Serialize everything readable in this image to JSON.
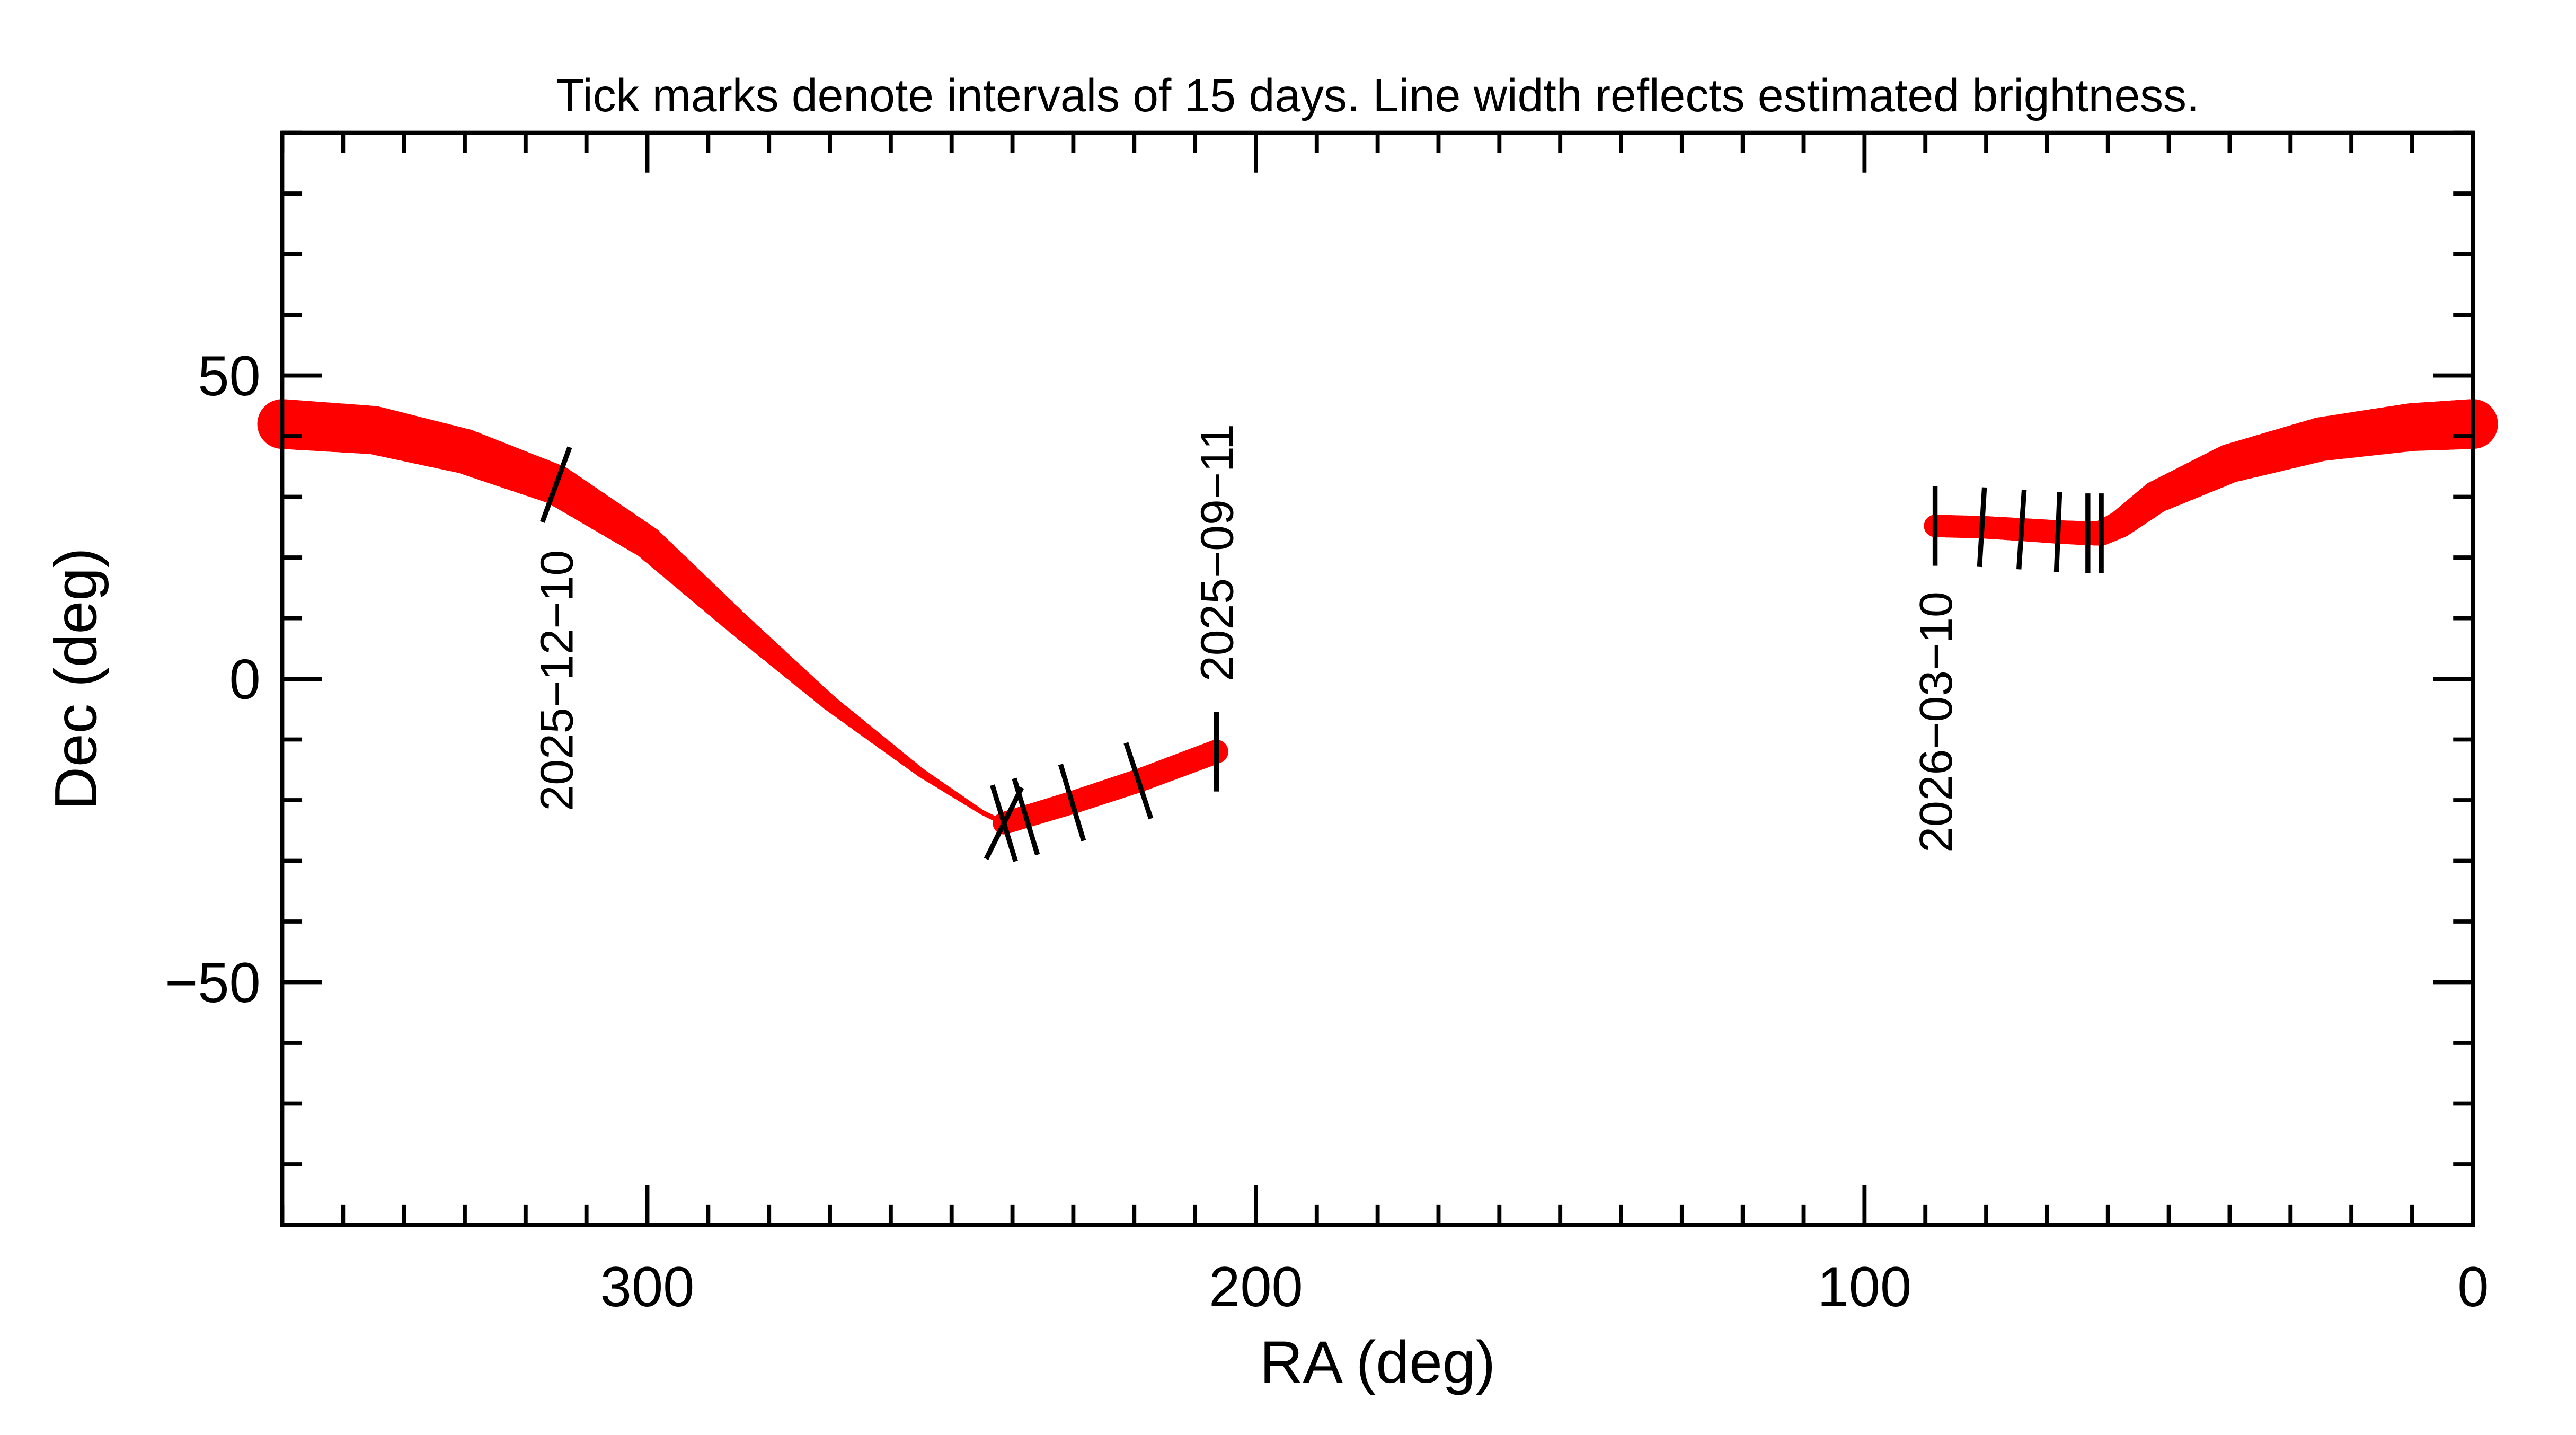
{
  "chart_data": {
    "type": "line",
    "title": "Tick marks denote intervals of 15 days.  Line width reflects estimated brightness.",
    "xlabel": "RA (deg)",
    "ylabel": "Dec (deg)",
    "xlim": [
      360,
      0
    ],
    "ylim": [
      -90,
      90
    ],
    "x_ticks": [
      300,
      200,
      100,
      0
    ],
    "y_ticks": [
      50,
      0,
      -50
    ],
    "x_tick_labels": [
      "300",
      "200",
      "100",
      "0"
    ],
    "y_tick_labels": [
      "50",
      "0",
      "−50"
    ],
    "line_color": "#ff0000",
    "tick_color": "#000000",
    "series": [
      {
        "points_ra_dec_brightness": [
          [
            360,
            42,
            1.0
          ],
          [
            345,
            41,
            0.97
          ],
          [
            330,
            37.5,
            0.9
          ],
          [
            315,
            32,
            0.8
          ],
          [
            300,
            22.5,
            0.65
          ],
          [
            285,
            9,
            0.48
          ],
          [
            270,
            -4,
            0.32
          ],
          [
            255,
            -15.5,
            0.18
          ],
          [
            245,
            -22,
            0.1
          ],
          [
            241.4,
            -23.8,
            0.08
          ]
        ]
      },
      {
        "points_ra_dec_brightness": [
          [
            241.4,
            -23.8,
            0.45
          ],
          [
            237.8,
            -22.7,
            0.45
          ],
          [
            230.2,
            -20.4,
            0.46
          ],
          [
            219.3,
            -16.8,
            0.47
          ],
          [
            206.5,
            -12,
            0.48
          ]
        ]
      },
      {
        "points_ra_dec_brightness": [
          [
            88.4,
            25.2,
            0.45
          ],
          [
            80.7,
            25,
            0.45
          ],
          [
            74.2,
            24.6,
            0.46
          ],
          [
            68.2,
            24.2,
            0.47
          ],
          [
            63.3,
            24,
            0.48
          ],
          [
            61.1,
            24,
            0.5
          ],
          [
            58,
            25.5,
            0.55
          ],
          [
            52,
            30,
            0.65
          ],
          [
            40,
            35.5,
            0.78
          ],
          [
            25,
            39.5,
            0.88
          ],
          [
            10,
            41.5,
            0.96
          ],
          [
            0,
            42,
            1.0
          ]
        ]
      }
    ],
    "date_ticks": [
      {
        "ra": 315,
        "dec": 32,
        "label": "2025−12−10"
      },
      {
        "ra": 241.4,
        "dec": -23.8,
        "label": ""
      },
      {
        "ra": 241.4,
        "dec": -23.8,
        "label": "",
        "series": 1
      },
      {
        "ra": 237.8,
        "dec": -22.7,
        "label": ""
      },
      {
        "ra": 230.2,
        "dec": -20.4,
        "label": ""
      },
      {
        "ra": 219.3,
        "dec": -16.8,
        "label": ""
      },
      {
        "ra": 206.5,
        "dec": -12,
        "label": "2025−09−11"
      },
      {
        "ra": 88.4,
        "dec": 25.2,
        "label": "2026−03−10"
      },
      {
        "ra": 80.7,
        "dec": 25,
        "label": ""
      },
      {
        "ra": 74.2,
        "dec": 24.6,
        "label": ""
      },
      {
        "ra": 68.2,
        "dec": 24.2,
        "label": ""
      },
      {
        "ra": 63.3,
        "dec": 24,
        "label": ""
      },
      {
        "ra": 61.1,
        "dec": 24,
        "label": ""
      }
    ]
  }
}
